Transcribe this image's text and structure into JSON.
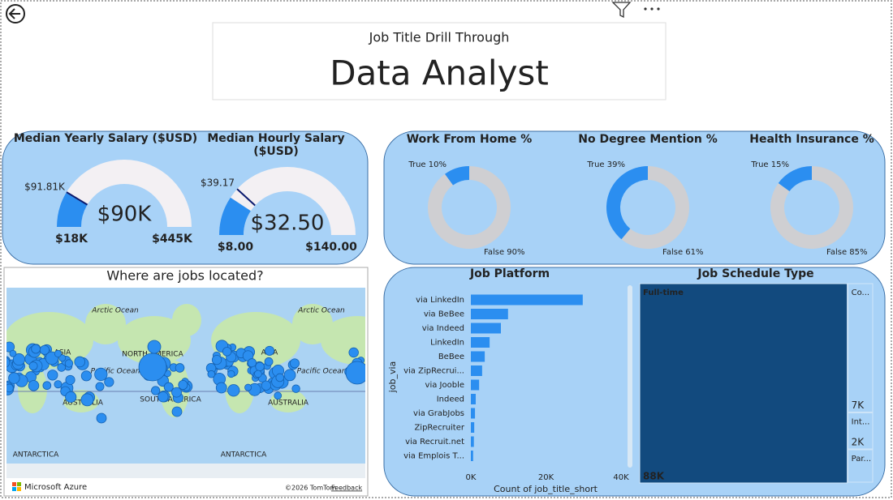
{
  "header": {
    "subtitle": "Job Title Drill Through",
    "title": "Data Analyst"
  },
  "gauges": [
    {
      "title": "Median Yearly Salary ($USD)",
      "value": 90000,
      "value_label": "$90K",
      "min": 18000,
      "min_label": "$18K",
      "max": 445000,
      "max_label": "$445K",
      "target": 91810,
      "target_label": "$91.81K"
    },
    {
      "title": "Median Hourly Salary ($USD)",
      "value": 32.5,
      "value_label": "$32.50",
      "min": 8,
      "min_label": "$8.00",
      "max": 140,
      "max_label": "$140.00",
      "target": 39.17,
      "target_label": "$39.17"
    }
  ],
  "donuts": [
    {
      "title": "Work From Home %",
      "true": 10,
      "true_label": "True 10%",
      "false": 90,
      "false_label": "False 90%"
    },
    {
      "title": "No Degree Mention %",
      "true": 39,
      "true_label": "True 39%",
      "false": 61,
      "false_label": "False 61%"
    },
    {
      "title": "Health Insurance %",
      "true": 15,
      "true_label": "True 15%",
      "false": 85,
      "false_label": "False 85%"
    }
  ],
  "map": {
    "title": "Where are jobs located?",
    "labels": [
      "Arctic Ocean",
      "Arctic Ocean",
      "ASIA",
      "ASIA",
      "NORTH AMERICA",
      "Pacific Ocean",
      "Pacific Ocean",
      "AUSTRALIA",
      "AUSTRALIA",
      "SOUTH AMERICA",
      "ANTARCTICA",
      "ANTARCTICA"
    ],
    "brand": "Microsoft Azure",
    "copyright": "©2026 TomTom",
    "feedback": "Feedback"
  },
  "platform_chart": {
    "title": "Job Platform",
    "x_label": "Count of job_title_short",
    "y_label": "job_via",
    "categories": [
      "via LinkedIn",
      "via BeBee",
      "via Indeed",
      "LinkedIn",
      "BeBee",
      "via ZipRecrui...",
      "via Jooble",
      "Indeed",
      "via GrabJobs",
      "ZipRecruiter",
      "via Recruit.net",
      "via Emplois T..."
    ],
    "values": [
      29800,
      9900,
      8000,
      5000,
      3700,
      3000,
      2200,
      1300,
      1100,
      900,
      800,
      600
    ],
    "color": "#2b8ef0",
    "xlim": [
      0,
      40000
    ],
    "xticks": [
      {
        "value": 0,
        "label": "0K"
      },
      {
        "value": 20000,
        "label": "20K"
      },
      {
        "value": 40000,
        "label": "40K"
      }
    ]
  },
  "schedule_chart": {
    "title": "Job Schedule Type",
    "categories": [
      "Full-time",
      "Co...",
      "Int...",
      "Par..."
    ],
    "values": [
      88000,
      7000,
      2000,
      1800
    ],
    "value_labels": [
      "88K",
      "7K",
      "2K",
      null
    ]
  }
}
